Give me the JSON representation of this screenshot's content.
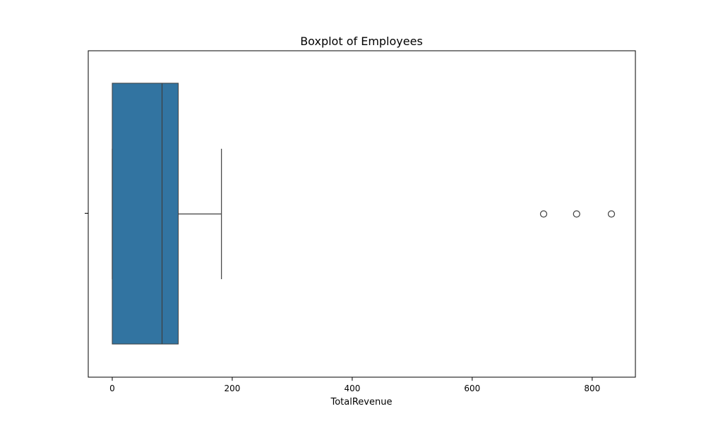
{
  "chart_data": {
    "type": "boxplot",
    "orientation": "horizontal",
    "title": "Boxplot of Employees",
    "xlabel": "TotalRevenue",
    "ylabel": "",
    "xlim": [
      -40,
      872
    ],
    "xticks": [
      0,
      200,
      400,
      600,
      800
    ],
    "grid": false,
    "box": {
      "whisker_low": 0,
      "q1": 0,
      "median": 83,
      "q3": 110,
      "whisker_high": 182,
      "outliers": [
        719,
        774,
        832
      ]
    },
    "colors": {
      "box_fill": "#3274a1",
      "lines": "#3f3f3f",
      "frame": "#000000"
    }
  }
}
